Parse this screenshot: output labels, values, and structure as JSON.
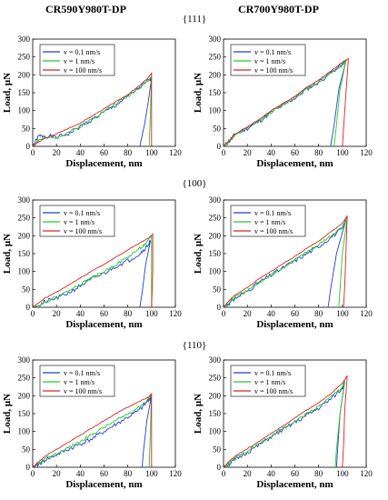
{
  "column_titles": [
    "CR590Y980T-DP",
    "CR700Y980T-DP"
  ],
  "row_titles": [
    "{111}",
    "{100}",
    "{110}"
  ],
  "colors": {
    "blue": "#1f3fd6",
    "green": "#22cc22",
    "red": "#e02020"
  },
  "chart_data": [
    {
      "type": "line",
      "xlabel": "Displacement, nm",
      "ylabel": "Load, μN",
      "xlim": [
        0,
        120
      ],
      "ylim": [
        0,
        300
      ],
      "xticks": [
        "0",
        "20",
        "40",
        "60",
        "80",
        "100",
        "120"
      ],
      "yticks": [
        "0",
        "50",
        "100",
        "150",
        "200",
        "250",
        "300"
      ],
      "legend": "top-left",
      "series": [
        {
          "name": "v = 0.1 nm/s",
          "x": [
            0,
            5,
            10,
            20,
            30,
            40,
            50,
            60,
            70,
            80,
            90,
            98,
            100,
            97,
            94,
            90
          ],
          "y": [
            0,
            28,
            30,
            25,
            35,
            55,
            75,
            95,
            115,
            140,
            165,
            185,
            190,
            120,
            60,
            0
          ]
        },
        {
          "name": "v = 1 nm/s",
          "x": [
            0,
            5,
            10,
            20,
            30,
            40,
            50,
            60,
            70,
            80,
            90,
            98,
            100,
            99,
            98
          ],
          "y": [
            0,
            18,
            22,
            25,
            40,
            55,
            78,
            98,
            120,
            140,
            165,
            185,
            195,
            90,
            0
          ]
        },
        {
          "name": "v = 100 nm/s",
          "x": [
            0,
            5,
            10,
            20,
            30,
            40,
            50,
            60,
            70,
            80,
            90,
            98,
            100,
            100,
            100
          ],
          "y": [
            0,
            12,
            22,
            35,
            50,
            65,
            85,
            105,
            125,
            145,
            170,
            195,
            205,
            100,
            0
          ]
        }
      ]
    },
    {
      "type": "line",
      "xlabel": "Displacement, nm",
      "ylabel": "Load, μN",
      "xlim": [
        0,
        120
      ],
      "ylim": [
        0,
        300
      ],
      "xticks": [
        "0",
        "20",
        "40",
        "60",
        "80",
        "100",
        "120"
      ],
      "yticks": [
        "0",
        "50",
        "100",
        "150",
        "200",
        "250",
        "300"
      ],
      "legend": "top-left",
      "series": [
        {
          "name": "v = 0.1 nm/s",
          "x": [
            0,
            5,
            10,
            20,
            30,
            40,
            50,
            60,
            70,
            80,
            90,
            100,
            103,
            97,
            93,
            90
          ],
          "y": [
            0,
            15,
            35,
            50,
            70,
            95,
            115,
            135,
            160,
            180,
            205,
            230,
            240,
            160,
            60,
            0
          ]
        },
        {
          "name": "v = 1 nm/s",
          "x": [
            0,
            5,
            10,
            20,
            30,
            40,
            50,
            60,
            70,
            80,
            90,
            100,
            103,
            98,
            95,
            93
          ],
          "y": [
            0,
            15,
            30,
            50,
            72,
            95,
            115,
            138,
            160,
            180,
            205,
            228,
            240,
            160,
            60,
            0
          ]
        },
        {
          "name": "v = 100 nm/s",
          "x": [
            0,
            5,
            10,
            20,
            30,
            40,
            50,
            60,
            70,
            80,
            90,
            100,
            105,
            103,
            101,
            100
          ],
          "y": [
            0,
            18,
            35,
            55,
            75,
            100,
            120,
            140,
            165,
            185,
            210,
            235,
            245,
            150,
            50,
            0
          ]
        }
      ]
    },
    {
      "type": "line",
      "xlabel": "Displacement, nm",
      "ylabel": "Load, μN",
      "xlim": [
        0,
        120
      ],
      "ylim": [
        0,
        300
      ],
      "xticks": [
        "0",
        "20",
        "40",
        "60",
        "80",
        "100",
        "120"
      ],
      "yticks": [
        "0",
        "50",
        "100",
        "150",
        "200",
        "250",
        "300"
      ],
      "legend": "top-left",
      "series": [
        {
          "name": "v = 0.1 nm/s",
          "x": [
            0,
            5,
            10,
            20,
            30,
            40,
            50,
            60,
            70,
            80,
            90,
            96,
            99,
            95,
            92,
            90
          ],
          "y": [
            0,
            5,
            15,
            25,
            40,
            60,
            80,
            95,
            115,
            130,
            150,
            170,
            185,
            120,
            40,
            0
          ]
        },
        {
          "name": "v = 1 nm/s",
          "x": [
            0,
            5,
            10,
            20,
            30,
            40,
            50,
            60,
            70,
            80,
            90,
            96,
            100,
            100,
            100
          ],
          "y": [
            0,
            5,
            15,
            28,
            45,
            65,
            82,
            100,
            120,
            140,
            165,
            180,
            200,
            100,
            0
          ]
        },
        {
          "name": "v = 100 nm/s",
          "x": [
            0,
            5,
            10,
            20,
            30,
            40,
            50,
            60,
            70,
            80,
            90,
            98,
            101,
            101,
            100
          ],
          "y": [
            0,
            12,
            25,
            42,
            62,
            82,
            102,
            120,
            140,
            160,
            180,
            195,
            205,
            100,
            0
          ]
        }
      ]
    },
    {
      "type": "line",
      "xlabel": "Displacement, nm",
      "ylabel": "Load, μN",
      "xlim": [
        0,
        120
      ],
      "ylim": [
        0,
        300
      ],
      "xticks": [
        "0",
        "20",
        "40",
        "60",
        "80",
        "100",
        "120"
      ],
      "yticks": [
        "0",
        "50",
        "100",
        "150",
        "200",
        "250",
        "300"
      ],
      "legend": "top-left",
      "series": [
        {
          "name": "v = 0.1 nm/s",
          "x": [
            0,
            5,
            10,
            20,
            30,
            40,
            50,
            60,
            70,
            80,
            90,
            100,
            103,
            95,
            90,
            88
          ],
          "y": [
            0,
            12,
            25,
            45,
            70,
            90,
            110,
            130,
            150,
            170,
            195,
            220,
            245,
            150,
            50,
            0
          ]
        },
        {
          "name": "v = 1 nm/s",
          "x": [
            0,
            5,
            10,
            20,
            30,
            40,
            50,
            60,
            70,
            80,
            90,
            100,
            104,
            100,
            98,
            97
          ],
          "y": [
            0,
            15,
            28,
            48,
            70,
            92,
            112,
            132,
            155,
            175,
            200,
            225,
            250,
            150,
            50,
            0
          ]
        },
        {
          "name": "v = 100 nm/s",
          "x": [
            0,
            5,
            10,
            20,
            30,
            40,
            50,
            60,
            70,
            80,
            90,
            100,
            104,
            103,
            102,
            101
          ],
          "y": [
            0,
            20,
            35,
            55,
            80,
            100,
            122,
            142,
            165,
            185,
            210,
            235,
            255,
            160,
            60,
            0
          ]
        }
      ]
    },
    {
      "type": "line",
      "xlabel": "Displacement, nm",
      "ylabel": "Load, μN",
      "xlim": [
        0,
        120
      ],
      "ylim": [
        0,
        300
      ],
      "xticks": [
        "0",
        "20",
        "40",
        "60",
        "80",
        "100",
        "120"
      ],
      "yticks": [
        "0",
        "50",
        "100",
        "150",
        "200",
        "250",
        "300"
      ],
      "legend": "top-left",
      "series": [
        {
          "name": "v = 0.1 nm/s",
          "x": [
            0,
            5,
            10,
            20,
            30,
            40,
            50,
            60,
            70,
            80,
            90,
            97,
            100,
            96,
            93,
            92
          ],
          "y": [
            0,
            8,
            20,
            35,
            50,
            65,
            80,
            100,
            120,
            140,
            160,
            185,
            200,
            130,
            40,
            0
          ]
        },
        {
          "name": "v = 1 nm/s",
          "x": [
            0,
            5,
            10,
            20,
            30,
            40,
            50,
            60,
            70,
            80,
            90,
            97,
            100,
            99,
            98
          ],
          "y": [
            0,
            10,
            22,
            38,
            55,
            72,
            92,
            112,
            130,
            150,
            170,
            190,
            205,
            100,
            0
          ]
        },
        {
          "name": "v = 100 nm/s",
          "x": [
            0,
            5,
            10,
            20,
            30,
            40,
            50,
            60,
            70,
            80,
            90,
            97,
            100,
            100,
            100
          ],
          "y": [
            0,
            15,
            30,
            50,
            70,
            90,
            110,
            130,
            150,
            168,
            185,
            195,
            205,
            100,
            0
          ]
        }
      ]
    },
    {
      "type": "line",
      "xlabel": "Displacement, nm",
      "ylabel": "Load, μN",
      "xlim": [
        0,
        120
      ],
      "ylim": [
        0,
        300
      ],
      "xticks": [
        "0",
        "20",
        "40",
        "60",
        "80",
        "100",
        "120"
      ],
      "yticks": [
        "0",
        "50",
        "100",
        "150",
        "200",
        "250",
        "300"
      ],
      "legend": "top-left",
      "series": [
        {
          "name": "v = 0.1 nm/s",
          "x": [
            0,
            5,
            10,
            20,
            30,
            40,
            50,
            60,
            70,
            80,
            90,
            100,
            102,
            98,
            96,
            95
          ],
          "y": [
            0,
            10,
            22,
            42,
            62,
            85,
            105,
            125,
            145,
            165,
            190,
            220,
            240,
            150,
            50,
            0
          ]
        },
        {
          "name": "v = 1 nm/s",
          "x": [
            0,
            5,
            10,
            20,
            30,
            40,
            50,
            60,
            70,
            80,
            90,
            100,
            102,
            98,
            95,
            94
          ],
          "y": [
            0,
            12,
            25,
            45,
            65,
            88,
            108,
            128,
            150,
            170,
            195,
            225,
            245,
            150,
            50,
            0
          ]
        },
        {
          "name": "v = 100 nm/s",
          "x": [
            0,
            5,
            10,
            20,
            30,
            40,
            50,
            60,
            70,
            80,
            90,
            100,
            104,
            102,
            101,
            100
          ],
          "y": [
            0,
            18,
            32,
            52,
            72,
            95,
            115,
            138,
            160,
            180,
            205,
            235,
            255,
            160,
            60,
            0
          ]
        }
      ]
    }
  ]
}
